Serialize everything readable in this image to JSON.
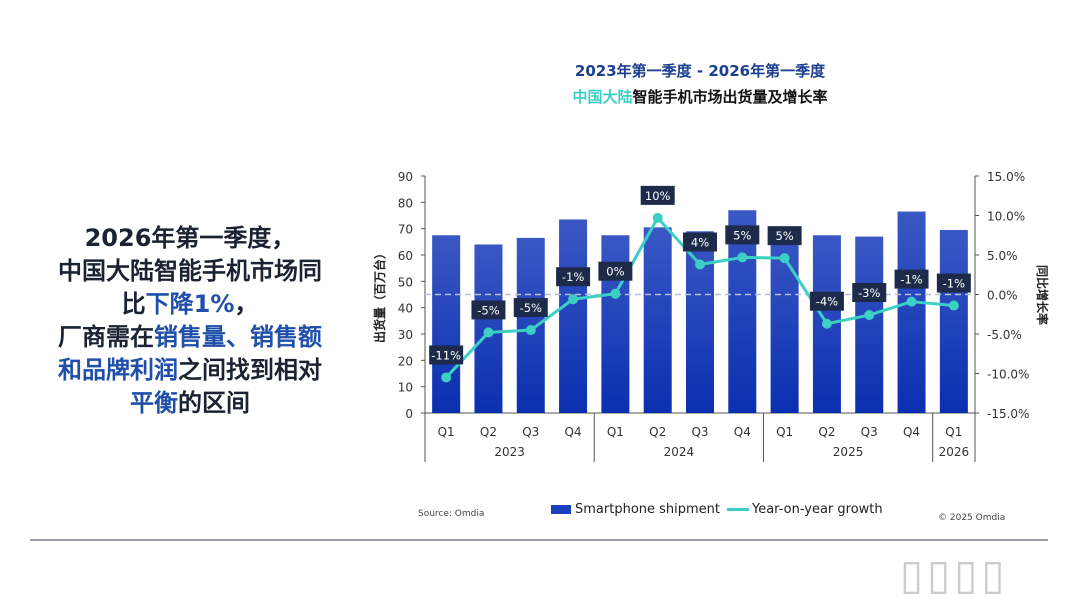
{
  "headline": {
    "lines": [
      [
        {
          "text": "2026年第一季度，",
          "hl": false
        }
      ],
      [
        {
          "text": "中国大陆智能手机市场同",
          "hl": false
        }
      ],
      [
        {
          "text": "比",
          "hl": false
        },
        {
          "text": "下降1%",
          "hl": true
        },
        {
          "text": "，",
          "hl": false
        }
      ],
      [
        {
          "text": "厂商需在",
          "hl": false
        },
        {
          "text": "销售量、销售额",
          "hl": true
        }
      ],
      [
        {
          "text": "和品牌利润",
          "hl": true
        },
        {
          "text": "之间找到相对",
          "hl": false
        }
      ],
      [
        {
          "text": "平衡",
          "hl": true
        },
        {
          "text": "的区间",
          "hl": false
        }
      ]
    ]
  },
  "chart_data": {
    "type": "bar+line",
    "title_line1": "2023年第一季度 - 2026年第一季度",
    "title_line2_accent": "中国大陆",
    "title_line2_rest": "智能手机市场出货量及增长率",
    "ylabel": "出货量（百万台）",
    "y2label": "同比增长率",
    "ylim": [
      0,
      90
    ],
    "y2lim": [
      -15,
      15
    ],
    "yticks": [
      "0",
      "10",
      "20",
      "30",
      "40",
      "50",
      "60",
      "70",
      "80",
      "90"
    ],
    "y2ticks": [
      "-15.0%",
      "-10.0%",
      "-5.0%",
      "0.0%",
      "5.0%",
      "10.0%",
      "15.0%"
    ],
    "categories": [
      "Q1",
      "Q2",
      "Q3",
      "Q4",
      "Q1",
      "Q2",
      "Q3",
      "Q4",
      "Q1",
      "Q2",
      "Q3",
      "Q4",
      "Q1"
    ],
    "years": [
      {
        "label": "2023",
        "span": 4
      },
      {
        "label": "2024",
        "span": 4
      },
      {
        "label": "2025",
        "span": 4
      },
      {
        "label": "2026",
        "span": 1
      }
    ],
    "series": [
      {
        "name": "Smartphone shipment",
        "type": "bar",
        "axis": "left",
        "color": "#1a3fbf",
        "values": [
          67.5,
          64,
          66.5,
          73.5,
          67.5,
          70.5,
          69,
          77,
          70.5,
          67.5,
          67,
          76.5,
          69.5
        ]
      },
      {
        "name": "Year-on-year growth",
        "type": "line",
        "axis": "right",
        "color": "#3ccfc4",
        "values": [
          -10.5,
          -4.8,
          -4.5,
          -0.6,
          0.1,
          9.7,
          3.8,
          4.7,
          4.6,
          -3.7,
          -2.6,
          -0.9,
          -1.4
        ],
        "labels": [
          "-11%",
          "-5%",
          "-5%",
          "-1%",
          "0%",
          "10%",
          "4%",
          "5%",
          "5%",
          "-4%",
          "-3%",
          "-1%",
          "-1%"
        ]
      }
    ],
    "grid": false,
    "legend": "bottom"
  },
  "footer": {
    "source": "Source: Omdia",
    "copyright": "© 2025 Omdia"
  }
}
